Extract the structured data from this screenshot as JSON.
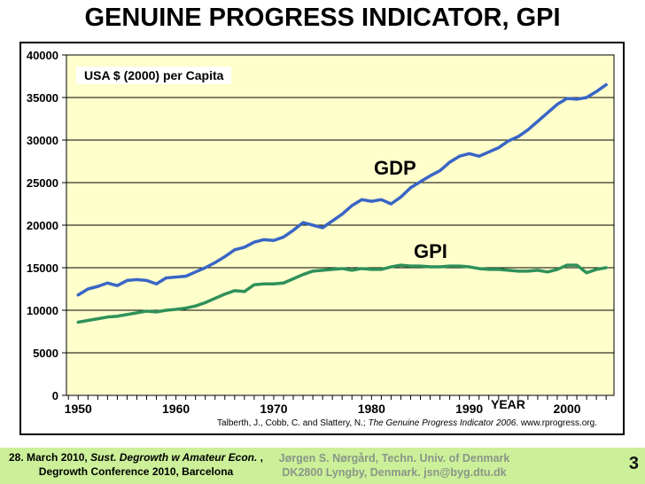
{
  "slide": {
    "title": "GENUINE PROGRESS INDICATOR, GPI",
    "page_number": "3"
  },
  "chart": {
    "colors": {
      "gdp": "#3965C5",
      "gpi": "#2F9159",
      "plot_bg": "#FFFFCC",
      "grid": "#000000"
    },
    "citation_prefix": "Talberth, J., Cobb, C. and Slattery, N.; ",
    "citation_italic": "The Genuine Progress Indicator 2006",
    "citation_suffix": ". www.rprogress.org."
  },
  "chart_data": {
    "type": "line",
    "title": "GENUINE PROGRESS INDICATOR, GPI",
    "xlabel": "YEAR",
    "ylabel": "USA $ (2000) per Capita",
    "x_start": 1950,
    "x_step": 1,
    "xlim": [
      1948.8,
      2004.8
    ],
    "ylim": [
      0,
      40000
    ],
    "xticks": [
      1950,
      1960,
      1970,
      1980,
      1990,
      2000
    ],
    "yticks": [
      0,
      5000,
      10000,
      15000,
      20000,
      25000,
      30000,
      35000,
      40000
    ],
    "minor_xticks": "yearly",
    "grid": "horizontal",
    "legend": "inline-labels",
    "series": [
      {
        "name": "GDP",
        "color": "#3965C5",
        "values": [
          11800,
          12500,
          12800,
          13200,
          12900,
          13500,
          13600,
          13500,
          13100,
          13800,
          13900,
          14000,
          14500,
          15000,
          15600,
          16300,
          17100,
          17400,
          18000,
          18300,
          18200,
          18600,
          19400,
          20300,
          20000,
          19700,
          20500,
          21300,
          22300,
          23000,
          22800,
          23000,
          22500,
          23300,
          24400,
          25100,
          25800,
          26400,
          27400,
          28100,
          28400,
          28100,
          28600,
          29100,
          29900,
          30400,
          31200,
          32200,
          33200,
          34200,
          34900,
          34800,
          35000,
          35700,
          36500
        ]
      },
      {
        "name": "GPI",
        "color": "#2F9159",
        "values": [
          8600,
          8800,
          9000,
          9200,
          9300,
          9500,
          9700,
          9900,
          9800,
          10000,
          10100,
          10250,
          10500,
          10900,
          11400,
          11900,
          12300,
          12200,
          13000,
          13100,
          13100,
          13200,
          13700,
          14200,
          14600,
          14700,
          14800,
          14900,
          14700,
          14900,
          14800,
          14800,
          15100,
          15300,
          15200,
          15200,
          15100,
          15100,
          15200,
          15200,
          15100,
          14900,
          14800,
          14800,
          14700,
          14600,
          14600,
          14700,
          14500,
          14800,
          15300,
          15300,
          14400,
          14800,
          15000
        ]
      }
    ]
  },
  "footer": {
    "left_line1_prefix": "28. March 2010, ",
    "left_line1_italic": " Sust. Degrowth w Amateur Econ. ",
    "left_line1_suffix": ",",
    "left_line2": "Degrowth Conference 2010, Barcelona",
    "center_line1": "Jørgen S. Nørgård, Techn. Univ. of Denmark",
    "center_line2": "DK2800 Lyngby, Denmark. jsn@byg.dtu.dk"
  }
}
